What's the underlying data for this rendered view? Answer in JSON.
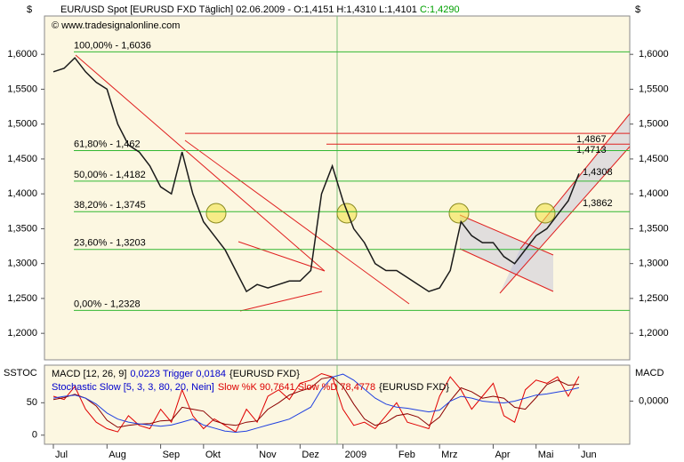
{
  "chart_data": [
    {
      "type": "line",
      "currency_left": "$",
      "currency_right": "$",
      "title": "EUR/USD Spot [EURUSD FXD  Täglich] 02.06.2009 - O:1,4151 H:1,4310 L:1,4101 ",
      "title_close": "C:1,4290",
      "title_close_color": "#00a000",
      "copyright": "© www.tradesignalonline.com",
      "categories": [
        "Jul",
        null,
        null,
        null,
        null,
        "Aug",
        null,
        null,
        null,
        null,
        "Sep",
        null,
        null,
        null,
        "Okt",
        null,
        null,
        null,
        null,
        "Nov",
        null,
        null,
        null,
        "Dez",
        null,
        null,
        null,
        "2009",
        null,
        null,
        null,
        null,
        "Feb",
        null,
        null,
        null,
        "Mrz",
        null,
        null,
        null,
        null,
        "Apr",
        null,
        null,
        null,
        "Mai",
        null,
        null,
        null,
        "Jun"
      ],
      "series": [
        {
          "color": "#1a1a1a",
          "values": [
            1.575,
            1.58,
            1.595,
            1.575,
            1.56,
            1.55,
            1.5,
            1.47,
            1.46,
            1.44,
            1.41,
            1.4,
            1.46,
            1.4,
            1.36,
            1.34,
            1.32,
            1.29,
            1.26,
            1.27,
            1.265,
            1.27,
            1.275,
            1.275,
            1.29,
            1.4,
            1.44,
            1.39,
            1.35,
            1.33,
            1.3,
            1.29,
            1.29,
            1.28,
            1.27,
            1.26,
            1.265,
            1.29,
            1.36,
            1.34,
            1.33,
            1.33,
            1.31,
            1.3,
            1.32,
            1.34,
            1.35,
            1.37,
            1.39,
            1.429
          ]
        }
      ],
      "ylim": [
        1.162,
        1.655
      ],
      "yticks": [
        {
          "value": 1.2,
          "label": "1,2000"
        },
        {
          "value": 1.25,
          "label": "1,2500"
        },
        {
          "value": 1.3,
          "label": "1,3000"
        },
        {
          "value": 1.35,
          "label": "1,3500"
        },
        {
          "value": 1.4,
          "label": "1,4000"
        },
        {
          "value": 1.45,
          "label": "1,4500"
        },
        {
          "value": 1.5,
          "label": "1,5000"
        },
        {
          "value": 1.55,
          "label": "1,5500"
        },
        {
          "value": 1.6,
          "label": "1,6000"
        }
      ],
      "fib_color": "#33b833",
      "fib_levels": [
        {
          "value": 1.6036,
          "label": "100,00% - 1,6036"
        },
        {
          "value": 1.462,
          "label": "61,80% - 1,462"
        },
        {
          "value": 1.4182,
          "label": "50,00% - 1,4182"
        },
        {
          "value": 1.3745,
          "label": "38,20% - 1,3745"
        },
        {
          "value": 1.3203,
          "label": "23,60% - 1,3203"
        },
        {
          "value": 1.2328,
          "label": "0,00% - 1,2328"
        }
      ],
      "resistance_color": "#e02020",
      "resistance_lines": [
        {
          "value": 1.4867,
          "label": "1,4867"
        },
        {
          "value": 1.4713,
          "label": "1,4713"
        }
      ],
      "annotations": [
        {
          "value": 1.4308,
          "label": "1,4308"
        },
        {
          "value": 1.3862,
          "label": "1,3862"
        }
      ]
    },
    {
      "type": "line",
      "label_left": "SSTOC",
      "label_right": "MACD",
      "legend": [
        [
          {
            "text": "MACD [12, 26, 9]",
            "color": "#000000"
          },
          {
            "text": "0,0223 Trigger 0,0184",
            "color": "#0000cc"
          },
          {
            "text": "{EURUSD FXD}",
            "color": "#000000"
          }
        ],
        [
          {
            "text": "Stochastic Slow [5, 3, 3, 80, 20, Nein]",
            "color": "#0000cc"
          },
          {
            "text": "Slow %K 90,7641 Slow %D 78,4778",
            "color": "#dd0000"
          },
          {
            "text": "{EURUSD FXD}",
            "color": "#000000"
          }
        ]
      ],
      "series": [
        {
          "color": "#e00000",
          "values": [
            60,
            55,
            75,
            40,
            20,
            10,
            5,
            30,
            15,
            10,
            40,
            20,
            70,
            30,
            10,
            25,
            15,
            5,
            40,
            20,
            60,
            70,
            55,
            80,
            85,
            95,
            90,
            40,
            15,
            20,
            10,
            30,
            50,
            20,
            15,
            10,
            60,
            90,
            70,
            40,
            60,
            80,
            30,
            20,
            70,
            85,
            80,
            90,
            60,
            90.7641
          ]
        },
        {
          "color": "#8b0000",
          "values": [
            55,
            58,
            63,
            57,
            45,
            23,
            12,
            15,
            17,
            18,
            22,
            23,
            43,
            40,
            37,
            22,
            17,
            15,
            20,
            22,
            40,
            50,
            62,
            68,
            73,
            87,
            90,
            75,
            48,
            25,
            15,
            20,
            30,
            33,
            28,
            15,
            28,
            53,
            73,
            67,
            57,
            60,
            57,
            43,
            40,
            58,
            78,
            85,
            77,
            78.4778
          ]
        },
        {
          "color": "#2040e0",
          "axis": "y2",
          "values": [
            0.005,
            0.008,
            0.01,
            0.005,
            -0.005,
            -0.02,
            -0.03,
            -0.035,
            -0.038,
            -0.04,
            -0.042,
            -0.04,
            -0.035,
            -0.03,
            -0.04,
            -0.045,
            -0.05,
            -0.052,
            -0.05,
            -0.045,
            -0.04,
            -0.035,
            -0.03,
            -0.02,
            -0.01,
            0.02,
            0.04,
            0.045,
            0.035,
            0.02,
            0.005,
            -0.005,
            -0.01,
            -0.012,
            -0.015,
            -0.018,
            -0.015,
            0.0,
            0.008,
            0.005,
            0.0,
            -0.002,
            -0.003,
            0.0,
            0.005,
            0.01,
            0.012,
            0.015,
            0.018,
            0.0223
          ]
        }
      ],
      "ylim": [
        -14,
        108
      ],
      "yticks": [
        0,
        50
      ],
      "y2lim": [
        -0.072,
        0.06
      ],
      "y2ticks": [
        {
          "value": 0,
          "label": "0,0000"
        }
      ]
    }
  ]
}
